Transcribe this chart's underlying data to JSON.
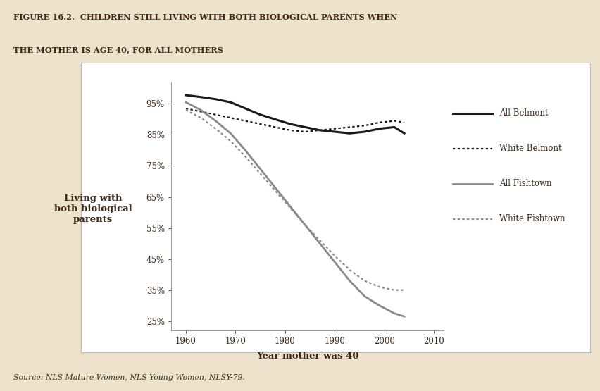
{
  "title_line1": "FIGURE 16.2.  CHILDREN STILL LIVING WITH BOTH BIOLOGICAL PARENTS WHEN",
  "title_line2": "THE MOTHER IS AGE 40, FOR ALL MOTHERS",
  "source_text": "Source: NLS Mature Women, NLS Young Women, NLSY-79.",
  "xlabel": "Year mother was 40",
  "ylabel": "Living with\nboth biological\nparents",
  "background_color": "#ede3cc",
  "plot_bg_color": "#ffffff",
  "chart_area_bg": "#f7f2e8",
  "all_belmont_x": [
    1960,
    1963,
    1966,
    1969,
    1972,
    1975,
    1978,
    1981,
    1984,
    1987,
    1990,
    1993,
    1996,
    1999,
    2002,
    2004
  ],
  "all_belmont_y": [
    97.8,
    97.2,
    96.5,
    95.5,
    93.5,
    91.5,
    90.0,
    88.5,
    87.5,
    86.5,
    86.0,
    85.5,
    86.0,
    87.0,
    87.5,
    85.5
  ],
  "white_belmont_x": [
    1960,
    1963,
    1966,
    1969,
    1972,
    1975,
    1978,
    1981,
    1984,
    1987,
    1990,
    1993,
    1996,
    1999,
    2002,
    2004
  ],
  "white_belmont_y": [
    93.5,
    92.5,
    91.5,
    90.5,
    89.5,
    88.5,
    87.5,
    86.5,
    86.0,
    86.5,
    87.0,
    87.5,
    88.0,
    89.0,
    89.5,
    89.0
  ],
  "all_fishtown_x": [
    1960,
    1963,
    1966,
    1969,
    1972,
    1975,
    1978,
    1981,
    1984,
    1987,
    1990,
    1993,
    1996,
    1999,
    2002,
    2004
  ],
  "all_fishtown_y": [
    95.5,
    93.0,
    89.5,
    85.5,
    80.0,
    74.0,
    68.0,
    62.0,
    56.0,
    50.0,
    44.0,
    38.0,
    33.0,
    30.0,
    27.5,
    26.5
  ],
  "white_fishtown_x": [
    1960,
    1963,
    1966,
    1969,
    1972,
    1975,
    1978,
    1981,
    1984,
    1987,
    1990,
    1993,
    1996,
    1999,
    2002,
    2004
  ],
  "white_fishtown_y": [
    93.0,
    90.5,
    87.0,
    83.0,
    78.0,
    72.5,
    67.0,
    61.5,
    56.0,
    51.0,
    46.0,
    41.5,
    38.0,
    36.0,
    35.0,
    35.0
  ],
  "yticks": [
    25,
    35,
    45,
    55,
    65,
    75,
    85,
    95
  ],
  "ytick_labels": [
    "25%",
    "35%",
    "45%",
    "55%",
    "65%",
    "75%",
    "85%",
    "95%"
  ],
  "xticks": [
    1960,
    1970,
    1980,
    1990,
    2000,
    2010
  ],
  "ylim": [
    22,
    102
  ],
  "xlim": [
    1957,
    2012
  ],
  "legend_labels": [
    "All Belmont",
    "White Belmont",
    "All Fishtown",
    "White Fishtown"
  ],
  "belmont_color": "#1a1a1a",
  "fishtown_color": "#8a8a8a"
}
